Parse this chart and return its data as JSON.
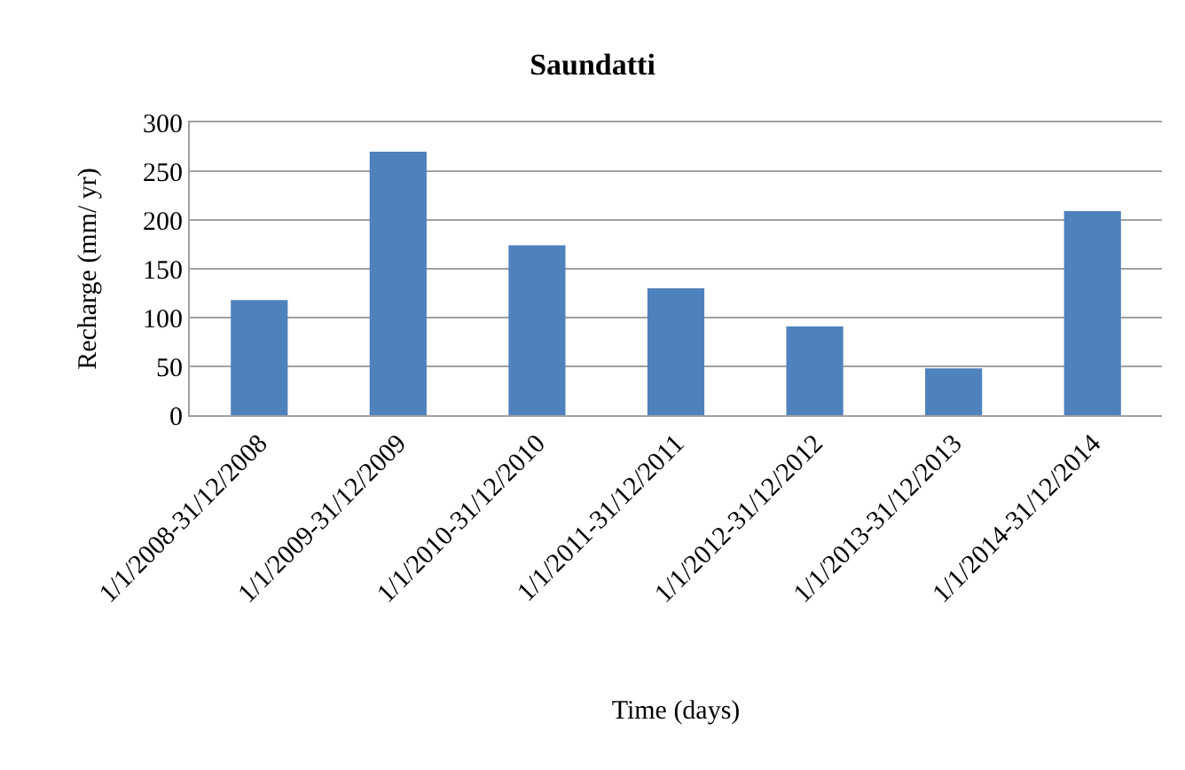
{
  "chart_data": {
    "type": "bar",
    "title": "Saundatti",
    "xlabel": "Time (days)",
    "ylabel": "Recharge (mm/ yr)",
    "categories": [
      "1/1/2008-31/12/2008",
      "1/1/2009-31/12/2009",
      "1/1/2010-31/12/2010",
      "1/1/2011-31/12/2011",
      "1/1/2012-31/12/2012",
      "1/1/2013-31/12/2013",
      "1/1/2014-31/12/2014"
    ],
    "values": [
      118,
      270,
      174,
      130,
      91,
      48,
      209
    ],
    "color": "#4f81bd",
    "ylim": [
      0,
      300
    ],
    "yticks": [
      0,
      50,
      100,
      150,
      200,
      250,
      300
    ],
    "grid": "y"
  }
}
